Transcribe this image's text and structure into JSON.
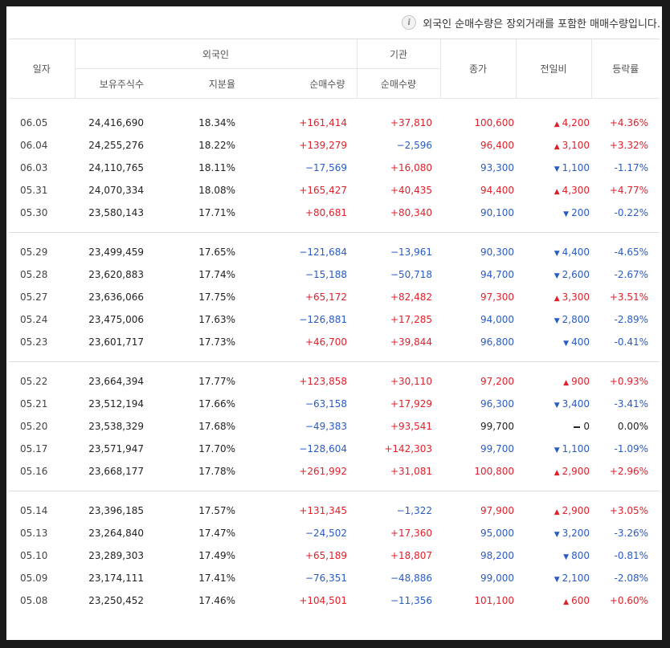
{
  "notice": "외국인 순매수량은 장외거래를 포함한 매매수량입니다.",
  "headers": {
    "date": "일자",
    "foreign": "외국인",
    "institution": "기관",
    "close": "종가",
    "change": "전일비",
    "rate": "등락률",
    "holding": "보유주식수",
    "ratio": "지분율",
    "foreign_net": "순매수량",
    "institution_net": "순매수량"
  },
  "colors": {
    "up": "#e0202a",
    "down": "#2a5bc4"
  },
  "groups": [
    [
      {
        "date": "06.05",
        "holding": "24,416,690",
        "ratio": "18.34%",
        "fnet": "+161,414",
        "inet": "+37,810",
        "close": "100,600",
        "dir": "up",
        "chg": "4,200",
        "rate": "+4.36%"
      },
      {
        "date": "06.04",
        "holding": "24,255,276",
        "ratio": "18.22%",
        "fnet": "+139,279",
        "inet": "−2,596",
        "close": "96,400",
        "dir": "up",
        "chg": "3,100",
        "rate": "+3.32%"
      },
      {
        "date": "06.03",
        "holding": "24,110,765",
        "ratio": "18.11%",
        "fnet": "−17,569",
        "inet": "+16,080",
        "close": "93,300",
        "dir": "down",
        "chg": "1,100",
        "rate": "-1.17%"
      },
      {
        "date": "05.31",
        "holding": "24,070,334",
        "ratio": "18.08%",
        "fnet": "+165,427",
        "inet": "+40,435",
        "close": "94,400",
        "dir": "up",
        "chg": "4,300",
        "rate": "+4.77%"
      },
      {
        "date": "05.30",
        "holding": "23,580,143",
        "ratio": "17.71%",
        "fnet": "+80,681",
        "inet": "+80,340",
        "close": "90,100",
        "dir": "down",
        "chg": "200",
        "rate": "-0.22%"
      }
    ],
    [
      {
        "date": "05.29",
        "holding": "23,499,459",
        "ratio": "17.65%",
        "fnet": "−121,684",
        "inet": "−13,961",
        "close": "90,300",
        "dir": "down",
        "chg": "4,400",
        "rate": "-4.65%"
      },
      {
        "date": "05.28",
        "holding": "23,620,883",
        "ratio": "17.74%",
        "fnet": "−15,188",
        "inet": "−50,718",
        "close": "94,700",
        "dir": "down",
        "chg": "2,600",
        "rate": "-2.67%"
      },
      {
        "date": "05.27",
        "holding": "23,636,066",
        "ratio": "17.75%",
        "fnet": "+65,172",
        "inet": "+82,482",
        "close": "97,300",
        "dir": "up",
        "chg": "3,300",
        "rate": "+3.51%"
      },
      {
        "date": "05.24",
        "holding": "23,475,006",
        "ratio": "17.63%",
        "fnet": "−126,881",
        "inet": "+17,285",
        "close": "94,000",
        "dir": "down",
        "chg": "2,800",
        "rate": "-2.89%"
      },
      {
        "date": "05.23",
        "holding": "23,601,717",
        "ratio": "17.73%",
        "fnet": "+46,700",
        "inet": "+39,844",
        "close": "96,800",
        "dir": "down",
        "chg": "400",
        "rate": "-0.41%"
      }
    ],
    [
      {
        "date": "05.22",
        "holding": "23,664,394",
        "ratio": "17.77%",
        "fnet": "+123,858",
        "inet": "+30,110",
        "close": "97,200",
        "dir": "up",
        "chg": "900",
        "rate": "+0.93%"
      },
      {
        "date": "05.21",
        "holding": "23,512,194",
        "ratio": "17.66%",
        "fnet": "−63,158",
        "inet": "+17,929",
        "close": "96,300",
        "dir": "down",
        "chg": "3,400",
        "rate": "-3.41%"
      },
      {
        "date": "05.20",
        "holding": "23,538,329",
        "ratio": "17.68%",
        "fnet": "−49,383",
        "inet": "+93,541",
        "close": "99,700",
        "dir": "flat",
        "chg": "0",
        "rate": "0.00%"
      },
      {
        "date": "05.17",
        "holding": "23,571,947",
        "ratio": "17.70%",
        "fnet": "−128,604",
        "inet": "+142,303",
        "close": "99,700",
        "dir": "down",
        "chg": "1,100",
        "rate": "-1.09%"
      },
      {
        "date": "05.16",
        "holding": "23,668,177",
        "ratio": "17.78%",
        "fnet": "+261,992",
        "inet": "+31,081",
        "close": "100,800",
        "dir": "up",
        "chg": "2,900",
        "rate": "+2.96%"
      }
    ],
    [
      {
        "date": "05.14",
        "holding": "23,396,185",
        "ratio": "17.57%",
        "fnet": "+131,345",
        "inet": "−1,322",
        "close": "97,900",
        "dir": "up",
        "chg": "2,900",
        "rate": "+3.05%"
      },
      {
        "date": "05.13",
        "holding": "23,264,840",
        "ratio": "17.47%",
        "fnet": "−24,502",
        "inet": "+17,360",
        "close": "95,000",
        "dir": "down",
        "chg": "3,200",
        "rate": "-3.26%"
      },
      {
        "date": "05.10",
        "holding": "23,289,303",
        "ratio": "17.49%",
        "fnet": "+65,189",
        "inet": "+18,807",
        "close": "98,200",
        "dir": "down",
        "chg": "800",
        "rate": "-0.81%"
      },
      {
        "date": "05.09",
        "holding": "23,174,111",
        "ratio": "17.41%",
        "fnet": "−76,351",
        "inet": "−48,886",
        "close": "99,000",
        "dir": "down",
        "chg": "2,100",
        "rate": "-2.08%"
      },
      {
        "date": "05.08",
        "holding": "23,250,452",
        "ratio": "17.46%",
        "fnet": "+104,501",
        "inet": "−11,356",
        "close": "101,100",
        "dir": "up",
        "chg": "600",
        "rate": "+0.60%"
      }
    ]
  ]
}
